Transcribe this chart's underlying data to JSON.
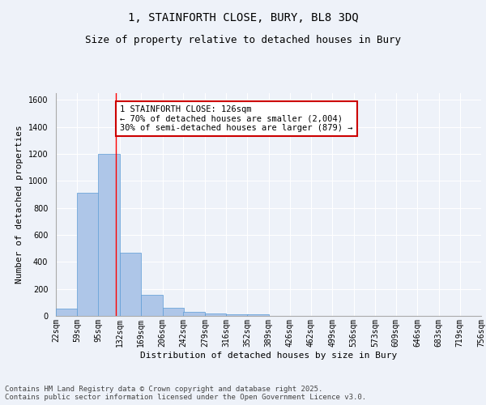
{
  "title1": "1, STAINFORTH CLOSE, BURY, BL8 3DQ",
  "title2": "Size of property relative to detached houses in Bury",
  "xlabel": "Distribution of detached houses by size in Bury",
  "ylabel": "Number of detached properties",
  "bin_labels": [
    "22sqm",
    "59sqm",
    "95sqm",
    "132sqm",
    "169sqm",
    "206sqm",
    "242sqm",
    "279sqm",
    "316sqm",
    "352sqm",
    "389sqm",
    "426sqm",
    "462sqm",
    "499sqm",
    "536sqm",
    "573sqm",
    "609sqm",
    "646sqm",
    "683sqm",
    "719sqm",
    "756sqm"
  ],
  "bin_edges": [
    22,
    59,
    95,
    132,
    169,
    206,
    242,
    279,
    316,
    352,
    389,
    426,
    462,
    499,
    536,
    573,
    609,
    646,
    683,
    719,
    756
  ],
  "bar_heights": [
    55,
    910,
    1200,
    470,
    155,
    60,
    30,
    20,
    12,
    12,
    0,
    0,
    0,
    0,
    0,
    0,
    0,
    0,
    0,
    0
  ],
  "bar_color": "#aec6e8",
  "bar_edgecolor": "#5b9bd5",
  "red_line_x": 126,
  "ylim": [
    0,
    1650
  ],
  "yticks": [
    0,
    200,
    400,
    600,
    800,
    1000,
    1200,
    1400,
    1600
  ],
  "annotation_text": "1 STAINFORTH CLOSE: 126sqm\n← 70% of detached houses are smaller (2,004)\n30% of semi-detached houses are larger (879) →",
  "annotation_box_facecolor": "#ffffff",
  "annotation_box_edgecolor": "#cc0000",
  "footer_text": "Contains HM Land Registry data © Crown copyright and database right 2025.\nContains public sector information licensed under the Open Government Licence v3.0.",
  "background_color": "#eef2f9",
  "grid_color": "#ffffff",
  "title_fontsize": 10,
  "subtitle_fontsize": 9,
  "axis_label_fontsize": 8,
  "tick_fontsize": 7,
  "annotation_fontsize": 7.5,
  "footer_fontsize": 6.5
}
